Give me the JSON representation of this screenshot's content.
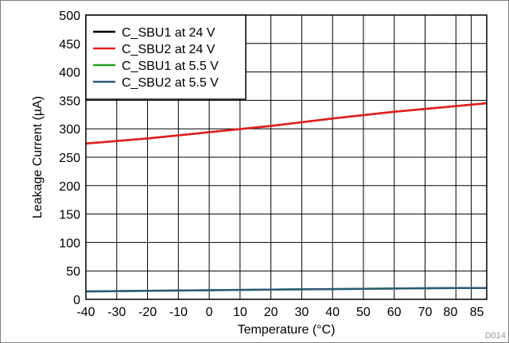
{
  "chart_data": {
    "type": "line",
    "xlabel": "Temperature (°C)",
    "ylabel": "Leakage Current (µA)",
    "xlim": [
      -40,
      90
    ],
    "ylim": [
      0,
      500
    ],
    "xticks": [
      -40,
      -30,
      -20,
      -10,
      0,
      10,
      20,
      30,
      40,
      50,
      60,
      70,
      80,
      85
    ],
    "xtick_labels": [
      "-40",
      "-30",
      "-20",
      "-10",
      "0",
      "10",
      "20",
      "30",
      "40",
      "50",
      "60",
      "70",
      "80",
      "85"
    ],
    "yticks": [
      0,
      50,
      100,
      150,
      200,
      250,
      300,
      350,
      400,
      450,
      500
    ],
    "ytick_labels": [
      "0",
      "50",
      "100",
      "150",
      "200",
      "250",
      "300",
      "350",
      "400",
      "450",
      "500"
    ],
    "grid": true,
    "legend_position": "top-left",
    "figure_id": "D014",
    "series": [
      {
        "name": "C_SBU1 at 24 V",
        "color": "#000000",
        "x": [
          -40,
          -20,
          0,
          20,
          40,
          60,
          80,
          90
        ],
        "y": [
          274,
          283,
          294,
          305,
          318,
          330,
          340,
          345
        ]
      },
      {
        "name": "C_SBU2 at 24 V",
        "color": "#e8201e",
        "x": [
          -40,
          -20,
          0,
          20,
          40,
          60,
          80,
          90
        ],
        "y": [
          274,
          283,
          294,
          305,
          318,
          330,
          340,
          345
        ]
      },
      {
        "name": "C_SBU1 at 5.5 V",
        "color": "#21a020",
        "x": [
          -40,
          -20,
          0,
          20,
          40,
          60,
          80,
          90
        ],
        "y": [
          14,
          15,
          16,
          17,
          18,
          19,
          20,
          20
        ]
      },
      {
        "name": "C_SBU2 at 5.5 V",
        "color": "#2b5a78",
        "x": [
          -40,
          -20,
          0,
          20,
          40,
          60,
          80,
          90
        ],
        "y": [
          14,
          15,
          16,
          17,
          18,
          19,
          20,
          20
        ]
      }
    ]
  }
}
